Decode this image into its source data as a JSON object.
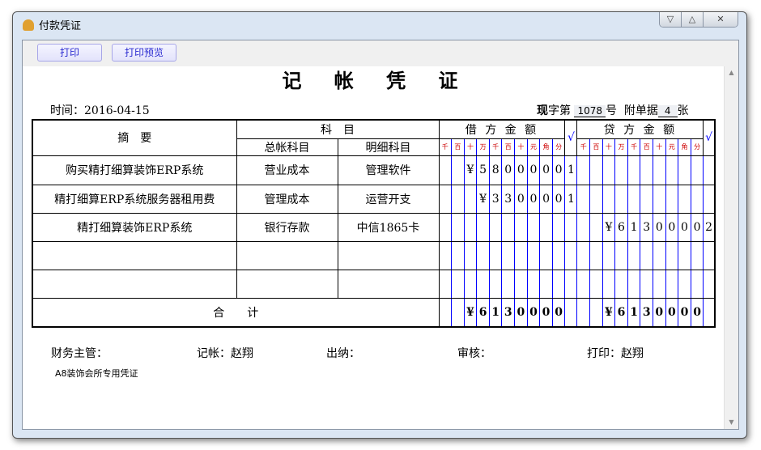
{
  "window": {
    "title": "付款凭证",
    "controls": [
      "▽",
      "△",
      "✕"
    ]
  },
  "toolbar": {
    "print": "打印",
    "preview": "打印预览"
  },
  "voucher": {
    "title": "记 帐 凭 证",
    "date_label": "时间：",
    "date": "2016-04-15",
    "no_prefix_bold": "现",
    "no_prefix": "字第",
    "no": "1078",
    "no_suffix": "号",
    "attach_label": "附单据",
    "attach": "4",
    "attach_suffix": "张",
    "headers": {
      "summary": "摘　要",
      "subject": "科　目",
      "general": "总帐科目",
      "detail": "明细科目",
      "debit": "借 方 金 额",
      "credit": "贷 方 金 额",
      "check": "√",
      "units": [
        "千",
        "百",
        "十",
        "万",
        "千",
        "百",
        "十",
        "元",
        "角",
        "分"
      ]
    },
    "rows": [
      {
        "summary": "购买精打细算装饰ERP系统",
        "general": "营业成本",
        "detail": "管理软件",
        "debit": [
          "",
          "",
          "¥",
          "5",
          "8",
          "0",
          "0",
          "0",
          "0",
          "0"
        ],
        "debit_check": "1",
        "credit": [
          "",
          "",
          "",
          "",
          "",
          "",
          "",
          "",
          "",
          ""
        ],
        "credit_check": ""
      },
      {
        "summary": "精打细算ERP系统服务器租用费",
        "general": "管理成本",
        "detail": "运营开支",
        "debit": [
          "",
          "",
          "",
          "¥",
          "3",
          "3",
          "0",
          "0",
          "0",
          "0"
        ],
        "debit_check": "1",
        "credit": [
          "",
          "",
          "",
          "",
          "",
          "",
          "",
          "",
          "",
          ""
        ],
        "credit_check": ""
      },
      {
        "summary": "精打细算装饰ERP系统",
        "general": "银行存款",
        "detail": "中信1865卡",
        "debit": [
          "",
          "",
          "",
          "",
          "",
          "",
          "",
          "",
          "",
          ""
        ],
        "debit_check": "",
        "credit": [
          "",
          "",
          "¥",
          "6",
          "1",
          "3",
          "0",
          "0",
          "0",
          "0"
        ],
        "credit_check": "2"
      },
      {
        "summary": "",
        "general": "",
        "detail": "",
        "debit": [
          "",
          "",
          "",
          "",
          "",
          "",
          "",
          "",
          "",
          ""
        ],
        "debit_check": "",
        "credit": [
          "",
          "",
          "",
          "",
          "",
          "",
          "",
          "",
          "",
          ""
        ],
        "credit_check": ""
      },
      {
        "summary": "",
        "general": "",
        "detail": "",
        "debit": [
          "",
          "",
          "",
          "",
          "",
          "",
          "",
          "",
          "",
          ""
        ],
        "debit_check": "",
        "credit": [
          "",
          "",
          "",
          "",
          "",
          "",
          "",
          "",
          "",
          ""
        ],
        "credit_check": ""
      }
    ],
    "total": {
      "label": "合　　计",
      "debit": [
        "",
        "",
        "¥",
        "6",
        "1",
        "3",
        "0",
        "0",
        "0",
        "0"
      ],
      "credit": [
        "",
        "",
        "¥",
        "6",
        "1",
        "3",
        "0",
        "0",
        "0",
        "0"
      ]
    },
    "footer": {
      "supervisor": "财务主管：",
      "bookkeeper": "记帐：赵翔",
      "cashier": "出纳：",
      "auditor": "审核：",
      "printer": "打印：赵翔",
      "note": "A8装饰会所专用凭证"
    }
  }
}
